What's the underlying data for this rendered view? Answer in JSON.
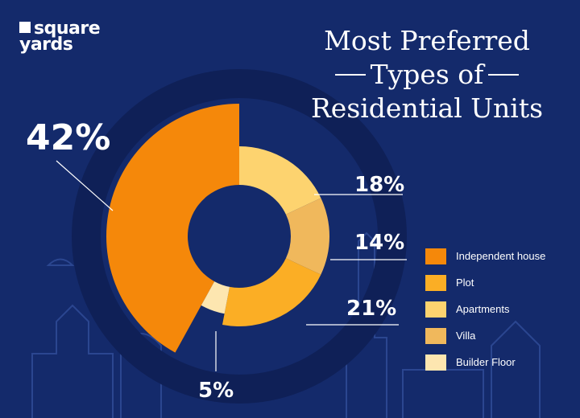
{
  "brand": {
    "line1": "square",
    "line2": "yards"
  },
  "title": {
    "line1": "Most Preferred",
    "line2": "Types of",
    "line3": "Residential Units"
  },
  "chart_data": {
    "type": "pie",
    "title": "Most Preferred Types of Residential Units",
    "legend_position": "right",
    "categories": [
      "Independent house",
      "Plot",
      "Apartments",
      "Villa",
      "Builder Floor"
    ],
    "values": [
      42,
      21,
      18,
      14,
      5
    ],
    "labels": [
      "42%",
      "21%",
      "18%",
      "14%",
      "5%"
    ],
    "colors": [
      "#f5880a",
      "#fbae25",
      "#fdd36f",
      "#f0b85c",
      "#fde6b0"
    ]
  },
  "legend": [
    {
      "label": "Independent house",
      "color": "#f5880a"
    },
    {
      "label": "Plot",
      "color": "#fbae25"
    },
    {
      "label": "Apartments",
      "color": "#fdd36f"
    },
    {
      "label": "Villa",
      "color": "#f0b85c"
    },
    {
      "label": "Builder Floor",
      "color": "#fde6b0"
    }
  ]
}
